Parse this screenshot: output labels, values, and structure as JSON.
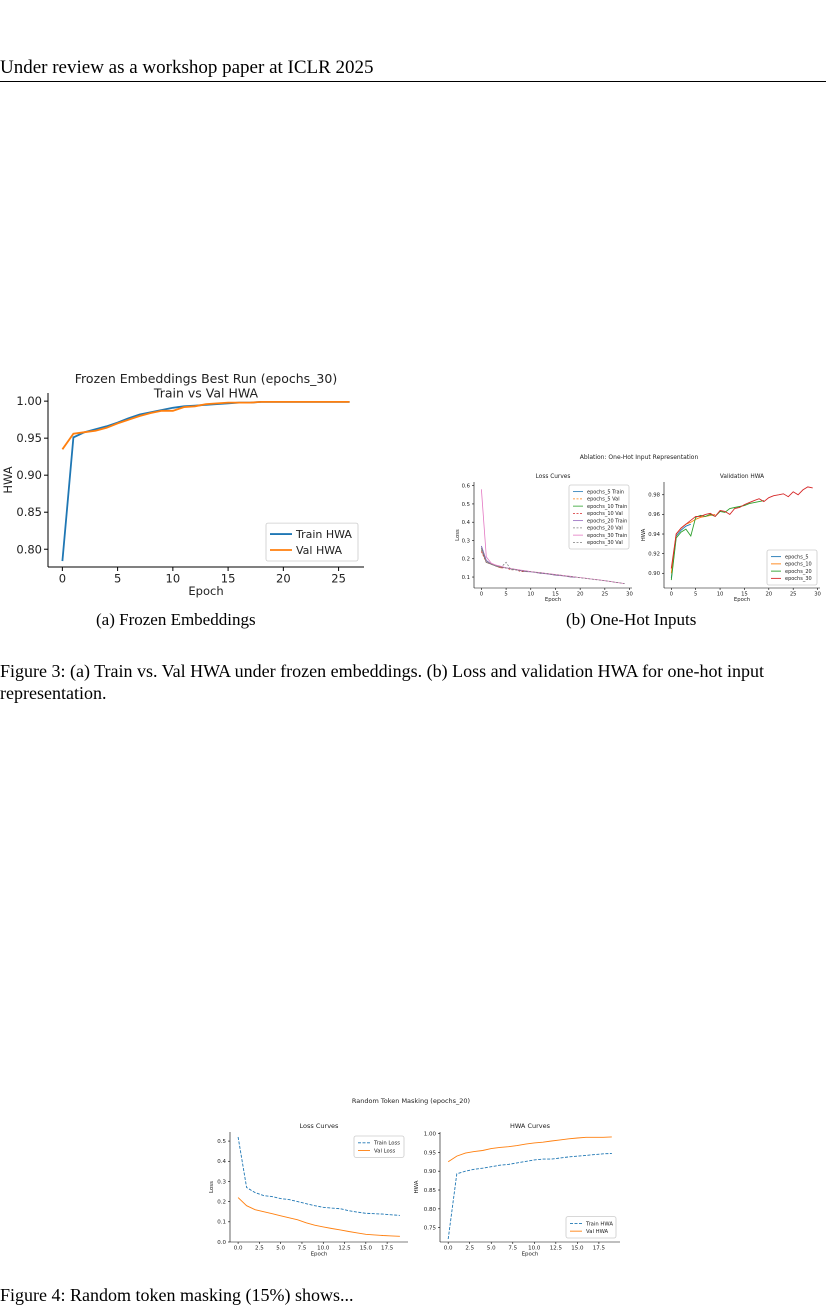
{
  "header": "Under review as a workshop paper at ICLR 2025",
  "colors": {
    "blue": "#1f77b4",
    "orange": "#ff7f0e",
    "green": "#2ca02c",
    "red": "#d62728",
    "purple": "#9467bd",
    "pink": "#e377c2",
    "gray": "#7f7f7f"
  },
  "figure3": {
    "caption": "Figure 3: (a) Train vs. Val HWA under frozen embeddings. (b) Loss and validation HWA for one-hot input representation.",
    "sub_a": "(a) Frozen Embeddings",
    "sub_b": "(b) One-Hot Inputs"
  },
  "figure4": {
    "caption": "Figure 4: Random token masking (15%) shows..."
  },
  "chart_data": [
    {
      "id": "frozen",
      "type": "line",
      "title": "Frozen Embeddings Best Run (epochs_30)",
      "subtitle": "Train vs Val HWA",
      "xlabel": "Epoch",
      "ylabel": "HWA",
      "xlim": [
        -1.3,
        27.3
      ],
      "ylim": [
        0.776,
        1.011
      ],
      "xticks": [
        0,
        5,
        10,
        15,
        20,
        25
      ],
      "yticks": [
        0.8,
        0.85,
        0.9,
        0.95,
        1.0
      ],
      "ytick_labels": [
        "0.80",
        "0.85",
        "0.90",
        "0.95",
        "1.00"
      ],
      "legend": "lower-right",
      "series": [
        {
          "name": "Train HWA",
          "x": [
            0,
            1,
            2,
            3,
            4,
            5,
            6,
            7,
            8,
            9,
            10,
            11,
            12,
            13,
            14,
            15,
            16,
            17,
            18,
            19,
            20,
            21,
            22,
            23,
            24,
            25,
            26
          ],
          "values": [
            0.784,
            0.951,
            0.958,
            0.962,
            0.966,
            0.971,
            0.977,
            0.982,
            0.985,
            0.988,
            0.991,
            0.993,
            0.994,
            0.995,
            0.996,
            0.997,
            0.998,
            0.998,
            0.999,
            0.999,
            0.999,
            0.999,
            0.999,
            0.999,
            0.999,
            0.999,
            0.999
          ]
        },
        {
          "name": "Val HWA",
          "x": [
            0,
            1,
            2,
            3,
            4,
            5,
            6,
            7,
            8,
            9,
            10,
            11,
            12,
            13,
            14,
            15,
            16,
            17,
            18,
            19,
            20,
            21,
            22,
            23,
            24,
            25,
            26
          ],
          "values": [
            0.935,
            0.956,
            0.958,
            0.96,
            0.964,
            0.97,
            0.975,
            0.98,
            0.984,
            0.987,
            0.987,
            0.992,
            0.993,
            0.996,
            0.997,
            0.998,
            0.998,
            0.998,
            0.999,
            0.999,
            0.999,
            0.999,
            0.999,
            0.999,
            0.999,
            0.999,
            0.999
          ]
        }
      ]
    },
    {
      "id": "onehot-loss",
      "type": "line",
      "suptitle": "Ablation: One-Hot Input Representation",
      "title": "Loss Curves",
      "xlabel": "Epoch",
      "ylabel": "Loss",
      "xlim": [
        -1.5,
        30.5
      ],
      "ylim": [
        0.04,
        0.62
      ],
      "xticks": [
        0,
        5,
        10,
        15,
        20,
        25,
        30
      ],
      "yticks": [
        0.1,
        0.2,
        0.3,
        0.4,
        0.5,
        0.6
      ],
      "ytick_labels": [
        "0.1",
        "0.2",
        "0.3",
        "0.4",
        "0.5",
        "0.6"
      ],
      "legend": "upper-right",
      "series": [
        {
          "name": "epochs_5 Train",
          "x": [
            0,
            1,
            2,
            3,
            4
          ],
          "values": [
            0.27,
            0.19,
            0.17,
            0.16,
            0.15
          ]
        },
        {
          "name": "epochs_5 Val",
          "x": [
            0,
            1,
            2,
            3,
            4
          ],
          "values": [
            0.25,
            0.18,
            0.17,
            0.16,
            0.15
          ]
        },
        {
          "name": "epochs_10 Train",
          "x": [
            0,
            1,
            2,
            3,
            4,
            5,
            6,
            7,
            8,
            9
          ],
          "values": [
            0.26,
            0.19,
            0.17,
            0.16,
            0.155,
            0.15,
            0.145,
            0.14,
            0.135,
            0.13
          ]
        },
        {
          "name": "epochs_10 Val",
          "x": [
            0,
            1,
            2,
            3,
            4,
            5,
            6,
            7,
            8,
            9
          ],
          "values": [
            0.24,
            0.18,
            0.17,
            0.16,
            0.15,
            0.15,
            0.14,
            0.14,
            0.13,
            0.13
          ]
        },
        {
          "name": "epochs_20 Train",
          "x": [
            0,
            1,
            2,
            3,
            4,
            5,
            6,
            7,
            8,
            9,
            10,
            11,
            12,
            13,
            14,
            15,
            16,
            17,
            18,
            19
          ],
          "values": [
            0.27,
            0.19,
            0.17,
            0.16,
            0.155,
            0.15,
            0.145,
            0.14,
            0.135,
            0.13,
            0.128,
            0.125,
            0.12,
            0.118,
            0.115,
            0.11,
            0.108,
            0.105,
            0.1,
            0.098
          ]
        },
        {
          "name": "epochs_20 Val",
          "x": [
            0,
            1,
            2,
            3,
            4,
            5,
            6,
            7,
            8,
            9,
            10,
            11,
            12,
            13,
            14,
            15,
            16,
            17,
            18,
            19
          ],
          "values": [
            0.25,
            0.18,
            0.17,
            0.16,
            0.155,
            0.18,
            0.14,
            0.14,
            0.135,
            0.13,
            0.13,
            0.125,
            0.12,
            0.12,
            0.115,
            0.11,
            0.11,
            0.105,
            0.1,
            0.1
          ]
        },
        {
          "name": "epochs_30 Train",
          "x": [
            0,
            1,
            2,
            3,
            4,
            5,
            6,
            7,
            8,
            9,
            10,
            11,
            12,
            13,
            14,
            15,
            16,
            17,
            18,
            19,
            20,
            21,
            22,
            23,
            24,
            25,
            26,
            27,
            28,
            29
          ],
          "values": [
            0.58,
            0.21,
            0.175,
            0.165,
            0.158,
            0.15,
            0.146,
            0.142,
            0.138,
            0.134,
            0.13,
            0.127,
            0.124,
            0.12,
            0.117,
            0.114,
            0.11,
            0.107,
            0.104,
            0.1,
            0.097,
            0.094,
            0.09,
            0.087,
            0.084,
            0.08,
            0.076,
            0.072,
            0.068,
            0.064
          ]
        },
        {
          "name": "epochs_30 Val",
          "x": [
            0,
            1,
            2,
            3,
            4,
            5,
            6,
            7,
            8,
            9,
            10,
            11,
            12,
            13,
            14,
            15,
            16,
            17,
            18,
            19,
            20,
            21,
            22,
            23,
            24,
            25,
            26,
            27,
            28,
            29
          ],
          "values": [
            0.26,
            0.18,
            0.17,
            0.16,
            0.155,
            0.15,
            0.145,
            0.14,
            0.136,
            0.132,
            0.13,
            0.126,
            0.123,
            0.12,
            0.116,
            0.113,
            0.11,
            0.106,
            0.103,
            0.1,
            0.096,
            0.093,
            0.09,
            0.086,
            0.083,
            0.08,
            0.076,
            0.072,
            0.068,
            0.064
          ]
        }
      ]
    },
    {
      "id": "onehot-hwa",
      "type": "line",
      "title": "Validation HWA",
      "xlabel": "Epoch",
      "ylabel": "HWA",
      "xlim": [
        -1.5,
        30.5
      ],
      "ylim": [
        0.885,
        0.993
      ],
      "xticks": [
        0,
        5,
        10,
        15,
        20,
        25,
        30
      ],
      "yticks": [
        0.9,
        0.92,
        0.94,
        0.96,
        0.98
      ],
      "ytick_labels": [
        "0.90",
        "0.92",
        "0.94",
        "0.96",
        "0.98"
      ],
      "legend": "lower-right",
      "series": [
        {
          "name": "epochs_5",
          "x": [
            0,
            1,
            2,
            3,
            4
          ],
          "values": [
            0.895,
            0.938,
            0.944,
            0.948,
            0.95
          ]
        },
        {
          "name": "epochs_10",
          "x": [
            0,
            1,
            2,
            3,
            4,
            5,
            6,
            7,
            8,
            9
          ],
          "values": [
            0.9,
            0.94,
            0.946,
            0.95,
            0.952,
            0.955,
            0.957,
            0.958,
            0.959,
            0.96
          ]
        },
        {
          "name": "epochs_20",
          "x": [
            0,
            1,
            2,
            3,
            4,
            5,
            6,
            7,
            8,
            9,
            10,
            11,
            12,
            13,
            14,
            15,
            16,
            17,
            18,
            19
          ],
          "values": [
            0.893,
            0.936,
            0.942,
            0.945,
            0.938,
            0.957,
            0.959,
            0.958,
            0.96,
            0.958,
            0.963,
            0.962,
            0.966,
            0.967,
            0.968,
            0.969,
            0.971,
            0.972,
            0.973,
            0.974
          ]
        },
        {
          "name": "epochs_30",
          "x": [
            0,
            1,
            2,
            3,
            4,
            5,
            6,
            7,
            8,
            9,
            10,
            11,
            12,
            13,
            14,
            15,
            16,
            17,
            18,
            19,
            20,
            21,
            22,
            23,
            24,
            25,
            26,
            27,
            28,
            29
          ],
          "values": [
            0.905,
            0.94,
            0.946,
            0.95,
            0.954,
            0.958,
            0.958,
            0.96,
            0.961,
            0.958,
            0.964,
            0.963,
            0.96,
            0.966,
            0.967,
            0.97,
            0.972,
            0.974,
            0.976,
            0.973,
            0.977,
            0.979,
            0.98,
            0.981,
            0.978,
            0.983,
            0.98,
            0.985,
            0.988,
            0.987
          ]
        }
      ]
    },
    {
      "id": "mask-loss",
      "type": "line",
      "suptitle": "Random Token Masking (epochs_20)",
      "title": "Loss Curves",
      "xlabel": "Epoch",
      "ylabel": "Loss",
      "xlim": [
        -0.95,
        19.95
      ],
      "ylim": [
        0.0,
        0.545
      ],
      "xticks": [
        0,
        2.5,
        5,
        7.5,
        10,
        12.5,
        15,
        17.5
      ],
      "yticks": [
        0.0,
        0.1,
        0.2,
        0.3,
        0.4,
        0.5
      ],
      "xtick_labels": [
        "0.0",
        "2.5",
        "5.0",
        "7.5",
        "10.0",
        "12.5",
        "15.0",
        "17.5"
      ],
      "ytick_labels": [
        "0.0",
        "0.1",
        "0.2",
        "0.3",
        "0.4",
        "0.5"
      ],
      "legend": "upper-right",
      "series": [
        {
          "name": "Train Loss",
          "x": [
            0,
            1,
            2,
            3,
            4,
            5,
            6,
            7,
            8,
            9,
            10,
            11,
            12,
            13,
            14,
            15,
            16,
            17,
            18,
            19
          ],
          "values": [
            0.52,
            0.27,
            0.245,
            0.23,
            0.225,
            0.215,
            0.21,
            0.2,
            0.19,
            0.18,
            0.172,
            0.168,
            0.165,
            0.155,
            0.148,
            0.142,
            0.14,
            0.138,
            0.135,
            0.132
          ]
        },
        {
          "name": "Val Loss",
          "x": [
            0,
            1,
            2,
            3,
            4,
            5,
            6,
            7,
            8,
            9,
            10,
            11,
            12,
            13,
            14,
            15,
            16,
            17,
            18,
            19
          ],
          "values": [
            0.22,
            0.18,
            0.16,
            0.15,
            0.14,
            0.13,
            0.12,
            0.11,
            0.095,
            0.083,
            0.075,
            0.067,
            0.06,
            0.052,
            0.045,
            0.038,
            0.035,
            0.032,
            0.03,
            0.028
          ]
        }
      ]
    },
    {
      "id": "mask-hwa",
      "type": "line",
      "title": "HWA Curves",
      "xlabel": "Epoch",
      "ylabel": "HWA",
      "xlim": [
        -0.95,
        19.95
      ],
      "ylim": [
        0.712,
        1.004
      ],
      "xticks": [
        0,
        2.5,
        5,
        7.5,
        10,
        12.5,
        15,
        17.5
      ],
      "yticks": [
        0.75,
        0.8,
        0.85,
        0.9,
        0.95,
        1.0
      ],
      "xtick_labels": [
        "0.0",
        "2.5",
        "5.0",
        "7.5",
        "10.0",
        "12.5",
        "15.0",
        "17.5"
      ],
      "ytick_labels": [
        "0.75",
        "0.80",
        "0.85",
        "0.90",
        "0.95",
        "1.00"
      ],
      "legend": "lower-right",
      "series": [
        {
          "name": "Train HWA",
          "x": [
            0,
            1,
            2,
            3,
            4,
            5,
            6,
            7,
            8,
            9,
            10,
            11,
            12,
            13,
            14,
            15,
            16,
            17,
            18,
            19
          ],
          "values": [
            0.72,
            0.893,
            0.9,
            0.905,
            0.908,
            0.912,
            0.916,
            0.918,
            0.922,
            0.926,
            0.93,
            0.932,
            0.932,
            0.935,
            0.938,
            0.94,
            0.942,
            0.944,
            0.946,
            0.947
          ]
        },
        {
          "name": "Val HWA",
          "x": [
            0,
            1,
            2,
            3,
            4,
            5,
            6,
            7,
            8,
            9,
            10,
            11,
            12,
            13,
            14,
            15,
            16,
            17,
            18,
            19
          ],
          "values": [
            0.925,
            0.94,
            0.948,
            0.952,
            0.955,
            0.96,
            0.963,
            0.965,
            0.968,
            0.972,
            0.975,
            0.977,
            0.98,
            0.983,
            0.986,
            0.988,
            0.99,
            0.99,
            0.99,
            0.991
          ]
        }
      ]
    }
  ]
}
